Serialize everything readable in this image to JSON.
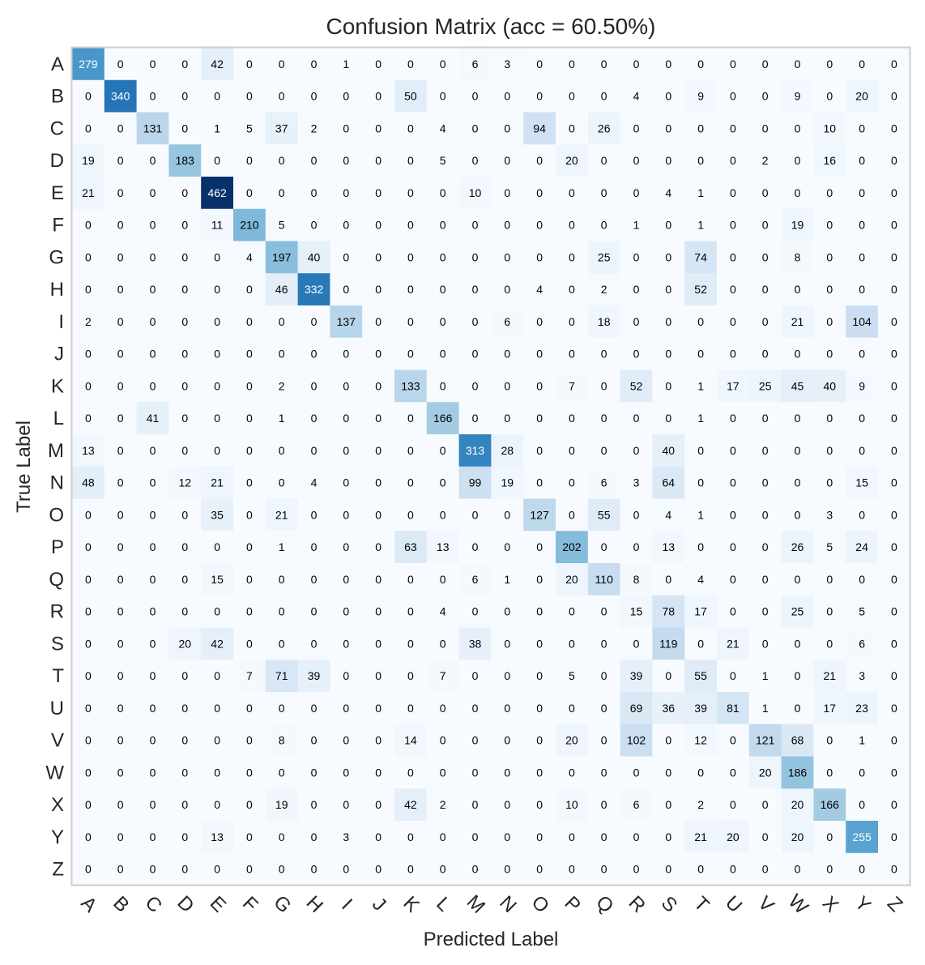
{
  "chart_data": {
    "type": "heatmap",
    "title": "Confusion Matrix (acc = 60.50%)",
    "xlabel": "Predicted Label",
    "ylabel": "True Label",
    "colormap": "Blues",
    "color_range": [
      0,
      462
    ],
    "grid": false,
    "x_labels": [
      "A",
      "B",
      "C",
      "D",
      "E",
      "F",
      "G",
      "H",
      "I",
      "J",
      "K",
      "L",
      "M",
      "N",
      "O",
      "P",
      "Q",
      "R",
      "S",
      "T",
      "U",
      "V",
      "W",
      "X",
      "Y",
      "Z"
    ],
    "y_labels": [
      "A",
      "B",
      "C",
      "D",
      "E",
      "F",
      "G",
      "H",
      "I",
      "J",
      "K",
      "L",
      "M",
      "N",
      "O",
      "P",
      "Q",
      "R",
      "S",
      "T",
      "U",
      "V",
      "W",
      "X",
      "Y",
      "Z"
    ],
    "matrix": [
      [
        279,
        0,
        0,
        0,
        42,
        0,
        0,
        0,
        1,
        0,
        0,
        0,
        6,
        3,
        0,
        0,
        0,
        0,
        0,
        0,
        0,
        0,
        0,
        0,
        0,
        0
      ],
      [
        0,
        340,
        0,
        0,
        0,
        0,
        0,
        0,
        0,
        0,
        50,
        0,
        0,
        0,
        0,
        0,
        0,
        4,
        0,
        9,
        0,
        0,
        9,
        0,
        20,
        0
      ],
      [
        0,
        0,
        131,
        0,
        1,
        5,
        37,
        2,
        0,
        0,
        0,
        4,
        0,
        0,
        94,
        0,
        26,
        0,
        0,
        0,
        0,
        0,
        0,
        10,
        0,
        0
      ],
      [
        19,
        0,
        0,
        183,
        0,
        0,
        0,
        0,
        0,
        0,
        0,
        5,
        0,
        0,
        0,
        20,
        0,
        0,
        0,
        0,
        0,
        2,
        0,
        16,
        0,
        0
      ],
      [
        21,
        0,
        0,
        0,
        462,
        0,
        0,
        0,
        0,
        0,
        0,
        0,
        10,
        0,
        0,
        0,
        0,
        0,
        4,
        1,
        0,
        0,
        0,
        0,
        0,
        0
      ],
      [
        0,
        0,
        0,
        0,
        11,
        210,
        5,
        0,
        0,
        0,
        0,
        0,
        0,
        0,
        0,
        0,
        0,
        1,
        0,
        1,
        0,
        0,
        19,
        0,
        0,
        0
      ],
      [
        0,
        0,
        0,
        0,
        0,
        4,
        197,
        40,
        0,
        0,
        0,
        0,
        0,
        0,
        0,
        0,
        25,
        0,
        0,
        74,
        0,
        0,
        8,
        0,
        0,
        0
      ],
      [
        0,
        0,
        0,
        0,
        0,
        0,
        46,
        332,
        0,
        0,
        0,
        0,
        0,
        0,
        4,
        0,
        2,
        0,
        0,
        52,
        0,
        0,
        0,
        0,
        0,
        0
      ],
      [
        2,
        0,
        0,
        0,
        0,
        0,
        0,
        0,
        137,
        0,
        0,
        0,
        0,
        6,
        0,
        0,
        18,
        0,
        0,
        0,
        0,
        0,
        21,
        0,
        104,
        0
      ],
      [
        0,
        0,
        0,
        0,
        0,
        0,
        0,
        0,
        0,
        0,
        0,
        0,
        0,
        0,
        0,
        0,
        0,
        0,
        0,
        0,
        0,
        0,
        0,
        0,
        0,
        0
      ],
      [
        0,
        0,
        0,
        0,
        0,
        0,
        2,
        0,
        0,
        0,
        133,
        0,
        0,
        0,
        0,
        7,
        0,
        52,
        0,
        1,
        17,
        25,
        45,
        40,
        9,
        0
      ],
      [
        0,
        0,
        41,
        0,
        0,
        0,
        1,
        0,
        0,
        0,
        0,
        166,
        0,
        0,
        0,
        0,
        0,
        0,
        0,
        1,
        0,
        0,
        0,
        0,
        0,
        0
      ],
      [
        13,
        0,
        0,
        0,
        0,
        0,
        0,
        0,
        0,
        0,
        0,
        0,
        313,
        28,
        0,
        0,
        0,
        0,
        40,
        0,
        0,
        0,
        0,
        0,
        0,
        0
      ],
      [
        48,
        0,
        0,
        12,
        21,
        0,
        0,
        4,
        0,
        0,
        0,
        0,
        99,
        19,
        0,
        0,
        6,
        3,
        64,
        0,
        0,
        0,
        0,
        0,
        15,
        0
      ],
      [
        0,
        0,
        0,
        0,
        35,
        0,
        21,
        0,
        0,
        0,
        0,
        0,
        0,
        0,
        127,
        0,
        55,
        0,
        4,
        1,
        0,
        0,
        0,
        3,
        0,
        0
      ],
      [
        0,
        0,
        0,
        0,
        0,
        0,
        1,
        0,
        0,
        0,
        63,
        13,
        0,
        0,
        0,
        202,
        0,
        0,
        13,
        0,
        0,
        0,
        26,
        5,
        24,
        0
      ],
      [
        0,
        0,
        0,
        0,
        15,
        0,
        0,
        0,
        0,
        0,
        0,
        0,
        6,
        1,
        0,
        20,
        110,
        8,
        0,
        4,
        0,
        0,
        0,
        0,
        0,
        0
      ],
      [
        0,
        0,
        0,
        0,
        0,
        0,
        0,
        0,
        0,
        0,
        0,
        4,
        0,
        0,
        0,
        0,
        0,
        15,
        78,
        17,
        0,
        0,
        25,
        0,
        5,
        0
      ],
      [
        0,
        0,
        0,
        20,
        42,
        0,
        0,
        0,
        0,
        0,
        0,
        0,
        38,
        0,
        0,
        0,
        0,
        0,
        119,
        0,
        21,
        0,
        0,
        0,
        6,
        0
      ],
      [
        0,
        0,
        0,
        0,
        0,
        7,
        71,
        39,
        0,
        0,
        0,
        7,
        0,
        0,
        0,
        5,
        0,
        39,
        0,
        55,
        0,
        1,
        0,
        21,
        3,
        0
      ],
      [
        0,
        0,
        0,
        0,
        0,
        0,
        0,
        0,
        0,
        0,
        0,
        0,
        0,
        0,
        0,
        0,
        0,
        69,
        36,
        39,
        81,
        1,
        0,
        17,
        23,
        0
      ],
      [
        0,
        0,
        0,
        0,
        0,
        0,
        8,
        0,
        0,
        0,
        14,
        0,
        0,
        0,
        0,
        20,
        0,
        102,
        0,
        12,
        0,
        121,
        68,
        0,
        1,
        0
      ],
      [
        0,
        0,
        0,
        0,
        0,
        0,
        0,
        0,
        0,
        0,
        0,
        0,
        0,
        0,
        0,
        0,
        0,
        0,
        0,
        0,
        0,
        20,
        186,
        0,
        0,
        0
      ],
      [
        0,
        0,
        0,
        0,
        0,
        0,
        19,
        0,
        0,
        0,
        42,
        2,
        0,
        0,
        0,
        10,
        0,
        6,
        0,
        2,
        0,
        0,
        20,
        166,
        0,
        0
      ],
      [
        0,
        0,
        0,
        0,
        13,
        0,
        0,
        0,
        3,
        0,
        0,
        0,
        0,
        0,
        0,
        0,
        0,
        0,
        0,
        21,
        20,
        0,
        20,
        0,
        255,
        0
      ],
      [
        0,
        0,
        0,
        0,
        0,
        0,
        0,
        0,
        0,
        0,
        0,
        0,
        0,
        0,
        0,
        0,
        0,
        0,
        0,
        0,
        0,
        0,
        0,
        0,
        0,
        0
      ]
    ]
  }
}
